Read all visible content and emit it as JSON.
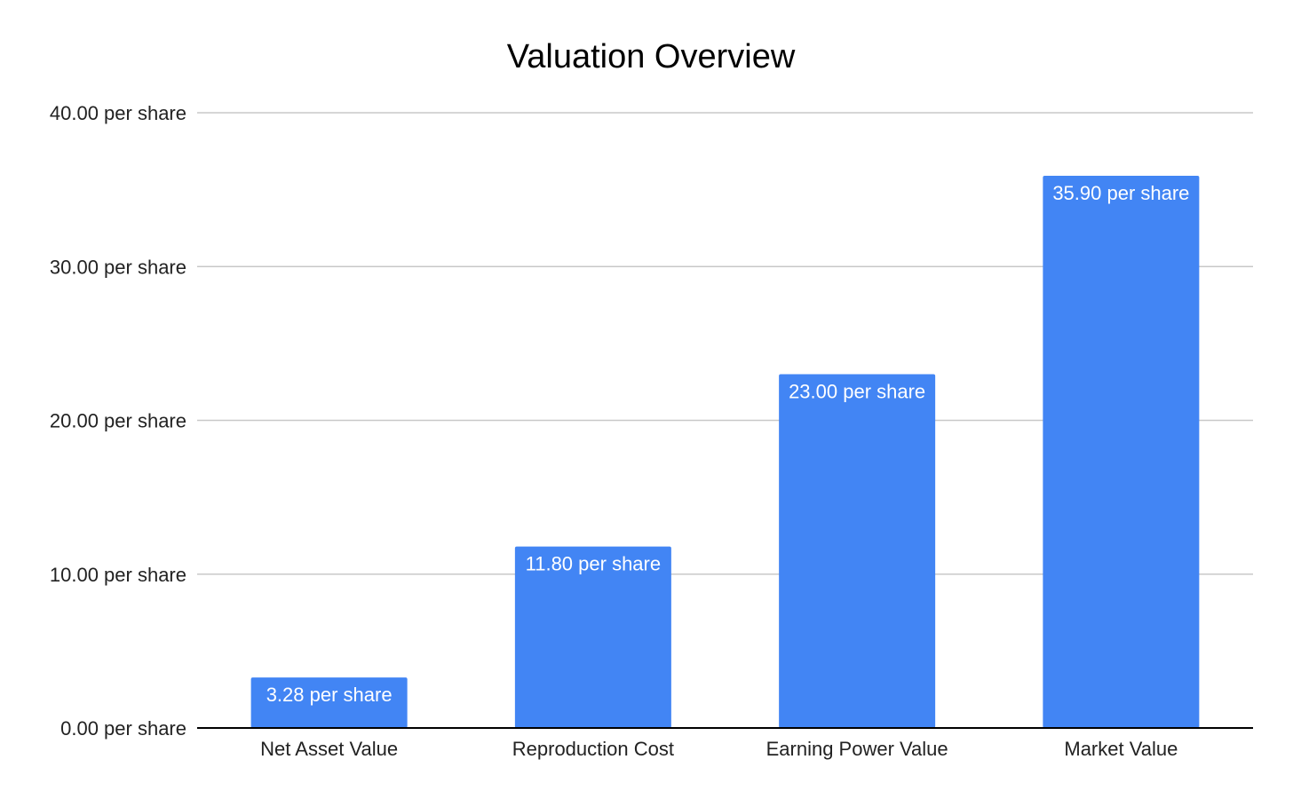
{
  "chart_data": {
    "type": "bar",
    "title": "Valuation Overview",
    "xlabel": "",
    "ylabel": "",
    "categories": [
      "Net Asset Value",
      "Reproduction Cost",
      "Earning Power Value",
      "Market Value"
    ],
    "values": [
      3.28,
      11.8,
      23.0,
      35.9
    ],
    "data_labels": [
      "3.28 per share",
      "11.80 per share",
      "23.00 per share",
      "35.90 per share"
    ],
    "ylim": [
      0,
      40
    ],
    "y_ticks": [
      0,
      10,
      20,
      30,
      40
    ],
    "y_tick_labels": [
      "0.00 per share",
      "10.00 per share",
      "20.00 per share",
      "30.00 per share",
      "40.00 per share"
    ],
    "grid": true,
    "legend": "none",
    "bar_color": "#4285f4"
  }
}
